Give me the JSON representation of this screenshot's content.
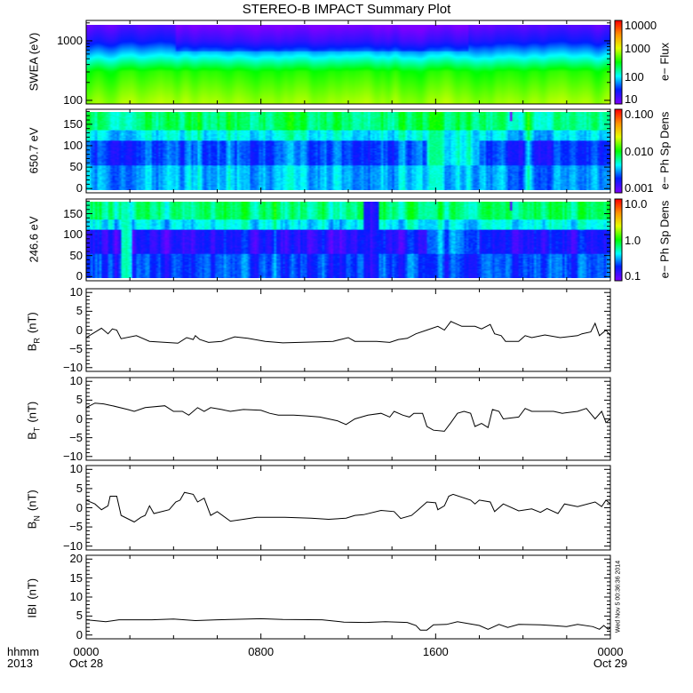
{
  "chart_data": {
    "title": "STEREO-B IMPACT Summary Plot",
    "x_axis": {
      "range_hours": [
        0,
        24
      ],
      "ticks": [
        {
          "hour": 0,
          "time": "0000",
          "date": "Oct 28"
        },
        {
          "hour": 8,
          "time": "0800",
          "date": ""
        },
        {
          "hour": 16,
          "time": "1600",
          "date": ""
        },
        {
          "hour": 24,
          "time": "0000",
          "date": "Oct 29"
        }
      ],
      "label_top": "hhmm",
      "label_bottom": "2013"
    },
    "stamp": "Wed Nov  5 00:36:36 2014",
    "panels": [
      {
        "type": "heatmap",
        "id": "swea",
        "ylabel": "SWEA (eV)",
        "yscale": "log",
        "ylim": [
          87,
          2200
        ],
        "yticks": [
          {
            "v": 100,
            "label": "100"
          },
          {
            "v": 1000,
            "label": "1000"
          }
        ],
        "colorbar": {
          "title": "e− Flux",
          "scale": "log",
          "range": [
            10,
            10000
          ],
          "ticks": [
            {
              "v": 10,
              "label": "10"
            },
            {
              "v": 100,
              "label": "100"
            },
            {
              "v": 1000,
              "label": "1000"
            },
            {
              "v": 10000,
              "label": "10000"
            }
          ]
        }
      },
      {
        "type": "heatmap",
        "id": "pad650",
        "ylabel": "650.7 eV",
        "yscale": "linear",
        "ylim": [
          -10,
          185
        ],
        "yticks": [
          {
            "v": 0,
            "label": "0"
          },
          {
            "v": 50,
            "label": "50"
          },
          {
            "v": 100,
            "label": "100"
          },
          {
            "v": 150,
            "label": "150"
          }
        ],
        "colorbar": {
          "title": "e− Ph Sp Dens",
          "scale": "log",
          "range": [
            0.001,
            0.1
          ],
          "ticks": [
            {
              "v": 0.001,
              "label": "0.001"
            },
            {
              "v": 0.01,
              "label": "0.010"
            },
            {
              "v": 0.1,
              "label": "0.100"
            }
          ]
        }
      },
      {
        "type": "heatmap",
        "id": "pad246",
        "ylabel": "246.6 eV",
        "yscale": "linear",
        "ylim": [
          -10,
          185
        ],
        "yticks": [
          {
            "v": 0,
            "label": "0"
          },
          {
            "v": 50,
            "label": "50"
          },
          {
            "v": 100,
            "label": "100"
          },
          {
            "v": 150,
            "label": "150"
          }
        ],
        "colorbar": {
          "title": "e− Ph Sp Dens",
          "scale": "log",
          "range": [
            0.1,
            10
          ],
          "ticks": [
            {
              "v": 0.1,
              "label": "0.1"
            },
            {
              "v": 1,
              "label": "1.0"
            },
            {
              "v": 10,
              "label": "10.0"
            }
          ]
        }
      },
      {
        "type": "line",
        "id": "br",
        "ylabel_main": "B",
        "ylabel_sub": "R",
        "ylabel_unit": "(nT)",
        "ylim": [
          -11,
          11
        ],
        "yticks": [
          {
            "v": -10,
            "label": "−10"
          },
          {
            "v": -5,
            "label": "−5"
          },
          {
            "v": 0,
            "label": "0"
          },
          {
            "v": 5,
            "label": "5"
          },
          {
            "v": 10,
            "label": "10"
          }
        ],
        "x": [
          0,
          0.7,
          1.0,
          1.2,
          1.4,
          1.6,
          2.3,
          2.9,
          4.2,
          4.6,
          4.9,
          5.0,
          5.2,
          5.6,
          6.2,
          6.8,
          7.4,
          8.2,
          9.0,
          10.3,
          11.3,
          12.0,
          12.3,
          13.3,
          13.9,
          14.3,
          14.7,
          15.1,
          15.6,
          16.1,
          16.4,
          16.7,
          17.2,
          17.8,
          18.1,
          18.5,
          18.7,
          19.0,
          19.2,
          19.8,
          20.1,
          20.4,
          21.0,
          21.7,
          22.5,
          22.7,
          23.1,
          23.3,
          23.5,
          23.8,
          24
        ],
        "y": [
          -2,
          0.5,
          -1,
          0.3,
          0,
          -2.3,
          -1.5,
          -3,
          -3.5,
          -2,
          -2.5,
          -1.5,
          -2.5,
          -3.3,
          -3,
          -1.8,
          -2.2,
          -3,
          -3.4,
          -3.2,
          -3,
          -2,
          -3,
          -3,
          -3.3,
          -2.5,
          -2.2,
          -1,
          0,
          1,
          0,
          2.3,
          1,
          1,
          0.3,
          1.5,
          -1,
          -1.5,
          -3,
          -3,
          -1.5,
          -2,
          -1.3,
          -2,
          -1.5,
          -1,
          -0.5,
          1.8,
          -1.5,
          0,
          -1.5
        ]
      },
      {
        "type": "line",
        "id": "bt",
        "ylabel_main": "B",
        "ylabel_sub": "T",
        "ylabel_unit": "(nT)",
        "ylim": [
          -11,
          11
        ],
        "yticks": [
          {
            "v": -10,
            "label": "−10"
          },
          {
            "v": -5,
            "label": "−5"
          },
          {
            "v": 0,
            "label": "0"
          },
          {
            "v": 5,
            "label": "5"
          },
          {
            "v": 10,
            "label": "10"
          }
        ],
        "x": [
          0,
          0.4,
          0.8,
          1.2,
          1.9,
          2.2,
          2.7,
          3.6,
          4.0,
          4.4,
          4.7,
          5.1,
          5.4,
          5.7,
          6.2,
          6.6,
          7.2,
          8.0,
          8.4,
          8.8,
          9.5,
          10.1,
          10.7,
          11.5,
          11.9,
          12.3,
          12.9,
          13.5,
          13.9,
          14.1,
          14.5,
          14.8,
          15.0,
          15.4,
          15.6,
          15.9,
          16.4,
          16.7,
          17.0,
          17.3,
          17.6,
          17.8,
          18.1,
          18.4,
          18.6,
          18.9,
          19.1,
          19.8,
          20.1,
          20.4,
          21.4,
          21.8,
          22.5,
          22.9,
          23.3,
          23.6,
          23.8,
          24
        ],
        "y": [
          3,
          4.2,
          4,
          3.5,
          2.5,
          2,
          3,
          3.5,
          2,
          2,
          1,
          3,
          2,
          3,
          2.5,
          2,
          2.5,
          2.3,
          1.5,
          1,
          1,
          0.8,
          0.5,
          -0.5,
          -1.5,
          0,
          1,
          1.5,
          0.5,
          2,
          1,
          0.5,
          1.5,
          1.5,
          -2,
          -3,
          -3.3,
          -1,
          1.5,
          2,
          1.5,
          -2,
          -1.2,
          -2.3,
          2.5,
          2,
          0,
          0.5,
          2.8,
          2,
          2,
          1.5,
          2,
          2.8,
          0,
          2,
          -1,
          0
        ]
      },
      {
        "type": "line",
        "id": "bn",
        "ylabel_main": "B",
        "ylabel_sub": "N",
        "ylabel_unit": "(nT)",
        "ylim": [
          -11,
          11
        ],
        "yticks": [
          {
            "v": -10,
            "label": "−10"
          },
          {
            "v": -5,
            "label": "−5"
          },
          {
            "v": 0,
            "label": "0"
          },
          {
            "v": 5,
            "label": "5"
          },
          {
            "v": 10,
            "label": "10"
          }
        ],
        "x": [
          0,
          0.4,
          0.7,
          1.0,
          1.1,
          1.4,
          1.6,
          2.2,
          2.5,
          2.7,
          2.9,
          3.1,
          3.8,
          4.1,
          4.3,
          4.5,
          4.9,
          5.1,
          5.4,
          5.7,
          6.0,
          6.6,
          7.2,
          7.8,
          9.1,
          10.3,
          11.1,
          11.9,
          12.3,
          12.7,
          13.5,
          14.1,
          14.4,
          14.9,
          15.2,
          15.6,
          16.0,
          16.1,
          16.4,
          16.6,
          16.8,
          17.6,
          17.8,
          18.0,
          18.5,
          18.7,
          19.1,
          19.8,
          20.4,
          20.8,
          21.1,
          21.6,
          21.9,
          22.5,
          23.3,
          23.6,
          23.8,
          24
        ],
        "y": [
          2,
          1,
          -0.5,
          0.5,
          3,
          3,
          -2,
          -3.7,
          -2.5,
          -2,
          0.5,
          -1.5,
          -0.5,
          1.5,
          2,
          4,
          3.5,
          1.5,
          2.5,
          -2,
          -1,
          -3.5,
          -3,
          -2.5,
          -2.5,
          -2.7,
          -3,
          -2.7,
          -2,
          -1.8,
          -0.7,
          -1,
          -2.8,
          -2,
          -0.5,
          1.5,
          1.3,
          -0.5,
          0.5,
          3,
          3.5,
          2,
          1,
          2,
          1.5,
          -1,
          1,
          -0.8,
          -0.3,
          -1.2,
          -0.2,
          -1.5,
          1,
          0.3,
          1.5,
          0.3,
          2,
          1
        ]
      },
      {
        "type": "line",
        "id": "bmag",
        "ylabel_main": "IBI",
        "ylabel_sub": "",
        "ylabel_unit": "(nT)",
        "ylim": [
          -1,
          21
        ],
        "yticks": [
          {
            "v": 0,
            "label": "0"
          },
          {
            "v": 5,
            "label": "5"
          },
          {
            "v": 10,
            "label": "10"
          },
          {
            "v": 15,
            "label": "15"
          },
          {
            "v": 20,
            "label": "20"
          }
        ],
        "x": [
          0,
          0.9,
          1.5,
          3.0,
          4.0,
          5.0,
          6.0,
          8.0,
          9.0,
          10.8,
          11.8,
          12.8,
          13.7,
          14.7,
          15.1,
          15.3,
          15.6,
          15.9,
          16.5,
          17.0,
          17.5,
          18.0,
          18.4,
          18.9,
          19.3,
          19.8,
          20.8,
          21.3,
          22.0,
          22.5,
          23.2,
          23.5,
          23.7,
          23.9,
          24
        ],
        "y": [
          4,
          3.5,
          4,
          4,
          4.2,
          3.8,
          4,
          4.3,
          4.1,
          4,
          3.4,
          3.3,
          3.5,
          3.3,
          2.5,
          1.3,
          1.3,
          2.7,
          2.8,
          3.5,
          3,
          2.5,
          1.5,
          2.8,
          2,
          2.8,
          2.7,
          2.5,
          2.2,
          2.8,
          2.2,
          1.5,
          2.5,
          1.5,
          2
        ]
      }
    ]
  }
}
